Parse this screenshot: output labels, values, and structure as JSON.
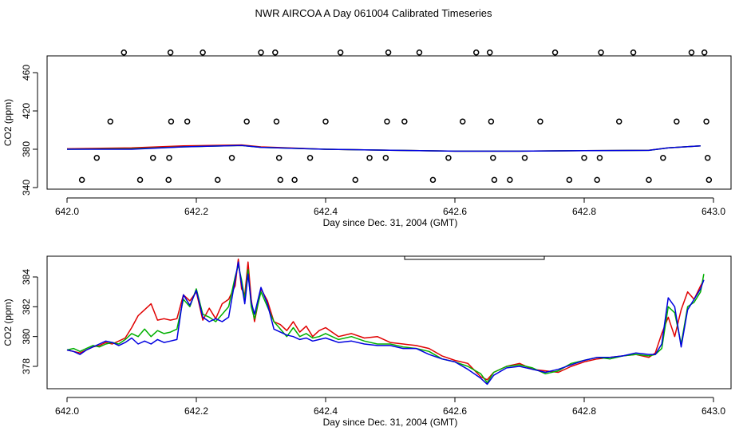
{
  "title": "NWR AIRCOA A  Day 061004  Calibrated Timeseries",
  "colors": {
    "red": "#e00000",
    "green": "#00b000",
    "blue": "#0000e0",
    "frame": "#000000"
  },
  "chart_data": [
    {
      "type": "line",
      "xlabel": "Day since Dec. 31, 2004 (GMT)",
      "ylabel": "CO2 (ppm)",
      "xlim": [
        642.0,
        643.0
      ],
      "ylim": [
        340,
        480
      ],
      "x_ticks": [
        "642.0",
        "642.2",
        "642.4",
        "642.6",
        "642.8",
        "643.0"
      ],
      "y_ticks": [
        "340",
        "380",
        "420",
        "460"
      ],
      "scatter_x": [
        642.023,
        642.046,
        642.067,
        642.088,
        642.113,
        642.133,
        642.157,
        642.158,
        642.161,
        642.16,
        642.186,
        642.21,
        642.233,
        642.255,
        642.278,
        642.3,
        642.322,
        642.324,
        642.328,
        642.33,
        642.352,
        642.376,
        642.4,
        642.423,
        642.446,
        642.468,
        642.493,
        642.495,
        642.497,
        642.522,
        642.545,
        642.566,
        642.59,
        642.612,
        642.633,
        642.654,
        642.656,
        642.659,
        642.661,
        642.685,
        642.708,
        642.732,
        642.755,
        642.777,
        642.8,
        642.82,
        642.824,
        642.826,
        642.854,
        642.876,
        642.9,
        642.922,
        642.943,
        642.966,
        642.986,
        642.989,
        642.991,
        642.993
      ],
      "scatter_y": [
        348,
        371,
        409,
        481,
        348,
        371,
        348,
        371,
        409,
        481,
        409,
        481,
        348,
        371,
        409,
        481,
        481,
        409,
        371,
        348,
        348,
        371,
        409,
        481,
        348,
        371,
        371,
        409,
        481,
        409,
        481,
        348,
        371,
        409,
        481,
        481,
        409,
        371,
        348,
        348,
        371,
        409,
        481,
        348,
        371,
        348,
        371,
        481,
        409,
        481,
        348,
        371,
        409,
        481,
        481,
        409,
        371,
        348
      ],
      "series": [
        {
          "color": "red",
          "x": [
            642.0,
            642.1,
            642.18,
            642.27,
            642.3,
            642.4,
            642.5,
            642.6,
            642.7,
            642.8,
            642.9,
            642.93,
            642.98
          ],
          "y": [
            380.5,
            381.5,
            383.5,
            384.5,
            382.5,
            380,
            379,
            378,
            378,
            378.5,
            379,
            381.5,
            383.5
          ]
        },
        {
          "color": "green",
          "x": [
            642.0,
            642.1,
            642.18,
            642.27,
            642.3,
            642.4,
            642.5,
            642.6,
            642.7,
            642.8,
            642.9,
            642.93,
            642.98
          ],
          "y": [
            380,
            380.5,
            382.5,
            384,
            382,
            380,
            379,
            378,
            378,
            378.5,
            378.8,
            381.5,
            383.5
          ]
        },
        {
          "color": "blue",
          "x": [
            642.0,
            642.1,
            642.18,
            642.27,
            642.3,
            642.4,
            642.5,
            642.6,
            642.7,
            642.8,
            642.9,
            642.93,
            642.98
          ],
          "y": [
            380,
            380,
            382.5,
            384,
            382,
            380,
            379,
            378,
            378,
            378.5,
            378.8,
            381.5,
            383.5
          ]
        }
      ]
    },
    {
      "type": "line",
      "xlabel": "Day since Dec. 31, 2004 (GMT)",
      "ylabel": "CO2 (ppm)",
      "xlim": [
        642.0,
        643.0
      ],
      "ylim": [
        376.5,
        385.5
      ],
      "x_ticks": [
        "642.0",
        "642.2",
        "642.4",
        "642.6",
        "642.8",
        "643.0"
      ],
      "y_ticks": [
        "378",
        "380",
        "382",
        "384"
      ],
      "series": [
        {
          "color": "red",
          "x": [
            642.0,
            642.01,
            642.02,
            642.03,
            642.04,
            642.05,
            642.06,
            642.07,
            642.08,
            642.09,
            642.1,
            642.11,
            642.12,
            642.13,
            642.14,
            642.15,
            642.16,
            642.17,
            642.18,
            642.19,
            642.2,
            642.21,
            642.22,
            642.23,
            642.24,
            642.25,
            642.26,
            642.265,
            642.27,
            642.275,
            642.28,
            642.285,
            642.29,
            642.3,
            642.31,
            642.32,
            642.33,
            642.34,
            642.35,
            642.36,
            642.37,
            642.38,
            642.39,
            642.4,
            642.42,
            642.44,
            642.46,
            642.48,
            642.5,
            642.52,
            642.54,
            642.56,
            642.58,
            642.6,
            642.62,
            642.64,
            642.65,
            642.66,
            642.68,
            642.7,
            642.72,
            642.74,
            642.76,
            642.78,
            642.8,
            642.82,
            642.84,
            642.86,
            642.88,
            642.9,
            642.91,
            642.92,
            642.93,
            642.94,
            642.95,
            642.96,
            642.97,
            642.98,
            642.985
          ],
          "y": [
            379.1,
            379.0,
            378.9,
            379.1,
            379.3,
            379.4,
            379.6,
            379.5,
            379.7,
            379.9,
            380.6,
            381.4,
            381.8,
            382.2,
            381.1,
            381.2,
            381.1,
            381.2,
            382.8,
            382.4,
            383.0,
            381.1,
            381.9,
            381.2,
            382.2,
            382.5,
            383.4,
            385.2,
            383.2,
            382.8,
            385.0,
            382.5,
            381.0,
            383.2,
            382.4,
            381.0,
            380.8,
            380.4,
            381.0,
            380.3,
            380.7,
            380.0,
            380.4,
            380.6,
            380.0,
            380.2,
            379.9,
            380.0,
            379.6,
            379.5,
            379.4,
            379.2,
            378.7,
            378.4,
            378.2,
            377.3,
            377.1,
            377.6,
            378.0,
            378.2,
            377.8,
            377.7,
            377.6,
            378.0,
            378.3,
            378.5,
            378.6,
            378.7,
            378.8,
            378.6,
            378.9,
            380.2,
            381.3,
            380.0,
            381.8,
            383.0,
            382.5,
            383.4,
            383.8
          ]
        },
        {
          "color": "green",
          "x": [
            642.0,
            642.01,
            642.02,
            642.03,
            642.04,
            642.05,
            642.06,
            642.07,
            642.08,
            642.09,
            642.1,
            642.11,
            642.12,
            642.13,
            642.14,
            642.15,
            642.16,
            642.17,
            642.18,
            642.19,
            642.2,
            642.21,
            642.22,
            642.23,
            642.24,
            642.25,
            642.26,
            642.265,
            642.27,
            642.275,
            642.28,
            642.285,
            642.29,
            642.3,
            642.31,
            642.32,
            642.33,
            642.34,
            642.35,
            642.36,
            642.37,
            642.38,
            642.39,
            642.4,
            642.42,
            642.44,
            642.46,
            642.48,
            642.5,
            642.52,
            642.54,
            642.56,
            642.58,
            642.6,
            642.62,
            642.64,
            642.65,
            642.66,
            642.68,
            642.7,
            642.72,
            642.74,
            642.76,
            642.78,
            642.8,
            642.82,
            642.84,
            642.86,
            642.88,
            642.9,
            642.91,
            642.92,
            642.93,
            642.94,
            642.95,
            642.96,
            642.97,
            642.98,
            642.985
          ],
          "y": [
            379.1,
            379.2,
            379.0,
            379.2,
            379.4,
            379.3,
            379.5,
            379.6,
            379.5,
            379.8,
            380.2,
            380.0,
            380.5,
            380.0,
            380.4,
            380.2,
            380.3,
            380.5,
            382.5,
            382.0,
            383.2,
            381.5,
            381.3,
            381.0,
            381.5,
            382.0,
            384.0,
            384.8,
            383.8,
            382.5,
            384.5,
            382.0,
            381.2,
            383.0,
            382.0,
            381.0,
            380.5,
            380.0,
            380.6,
            380.0,
            380.2,
            379.9,
            380.0,
            380.2,
            379.8,
            380.0,
            379.7,
            379.5,
            379.5,
            379.3,
            379.2,
            379.0,
            378.5,
            378.3,
            378.0,
            377.5,
            376.9,
            377.6,
            378.0,
            378.1,
            377.9,
            377.5,
            377.7,
            378.2,
            378.4,
            378.6,
            378.5,
            378.7,
            378.8,
            378.7,
            378.8,
            379.2,
            382.0,
            381.6,
            379.5,
            382.0,
            382.3,
            383.0,
            384.2
          ]
        },
        {
          "color": "blue",
          "x": [
            642.0,
            642.01,
            642.02,
            642.03,
            642.04,
            642.05,
            642.06,
            642.07,
            642.08,
            642.09,
            642.1,
            642.11,
            642.12,
            642.13,
            642.14,
            642.15,
            642.16,
            642.17,
            642.18,
            642.19,
            642.2,
            642.21,
            642.22,
            642.23,
            642.24,
            642.25,
            642.26,
            642.265,
            642.27,
            642.275,
            642.28,
            642.285,
            642.29,
            642.3,
            642.31,
            642.32,
            642.33,
            642.34,
            642.35,
            642.36,
            642.37,
            642.38,
            642.39,
            642.4,
            642.42,
            642.44,
            642.46,
            642.48,
            642.5,
            642.52,
            642.54,
            642.56,
            642.58,
            642.6,
            642.62,
            642.64,
            642.65,
            642.66,
            642.68,
            642.7,
            642.72,
            642.74,
            642.76,
            642.78,
            642.8,
            642.82,
            642.84,
            642.86,
            642.88,
            642.9,
            642.91,
            642.92,
            642.93,
            642.94,
            642.95,
            642.96,
            642.97,
            642.98,
            642.985
          ],
          "y": [
            379.1,
            379.0,
            378.8,
            379.1,
            379.3,
            379.5,
            379.7,
            379.6,
            379.4,
            379.6,
            379.9,
            379.5,
            379.7,
            379.5,
            379.8,
            379.6,
            379.7,
            379.8,
            382.8,
            382.1,
            383.1,
            381.3,
            381.0,
            381.2,
            381.0,
            381.3,
            383.8,
            385.0,
            383.5,
            382.2,
            384.2,
            382.3,
            381.5,
            383.3,
            382.2,
            380.5,
            380.3,
            380.1,
            380.0,
            379.8,
            379.9,
            379.7,
            379.8,
            379.9,
            379.6,
            379.7,
            379.5,
            379.4,
            379.4,
            379.2,
            379.2,
            378.8,
            378.5,
            378.3,
            377.8,
            377.2,
            376.8,
            377.4,
            377.9,
            378.0,
            377.8,
            377.6,
            377.8,
            378.1,
            378.4,
            378.6,
            378.6,
            378.7,
            378.9,
            378.8,
            378.8,
            379.5,
            382.6,
            382.0,
            379.3,
            381.8,
            382.5,
            383.2,
            383.8
          ]
        }
      ]
    }
  ]
}
